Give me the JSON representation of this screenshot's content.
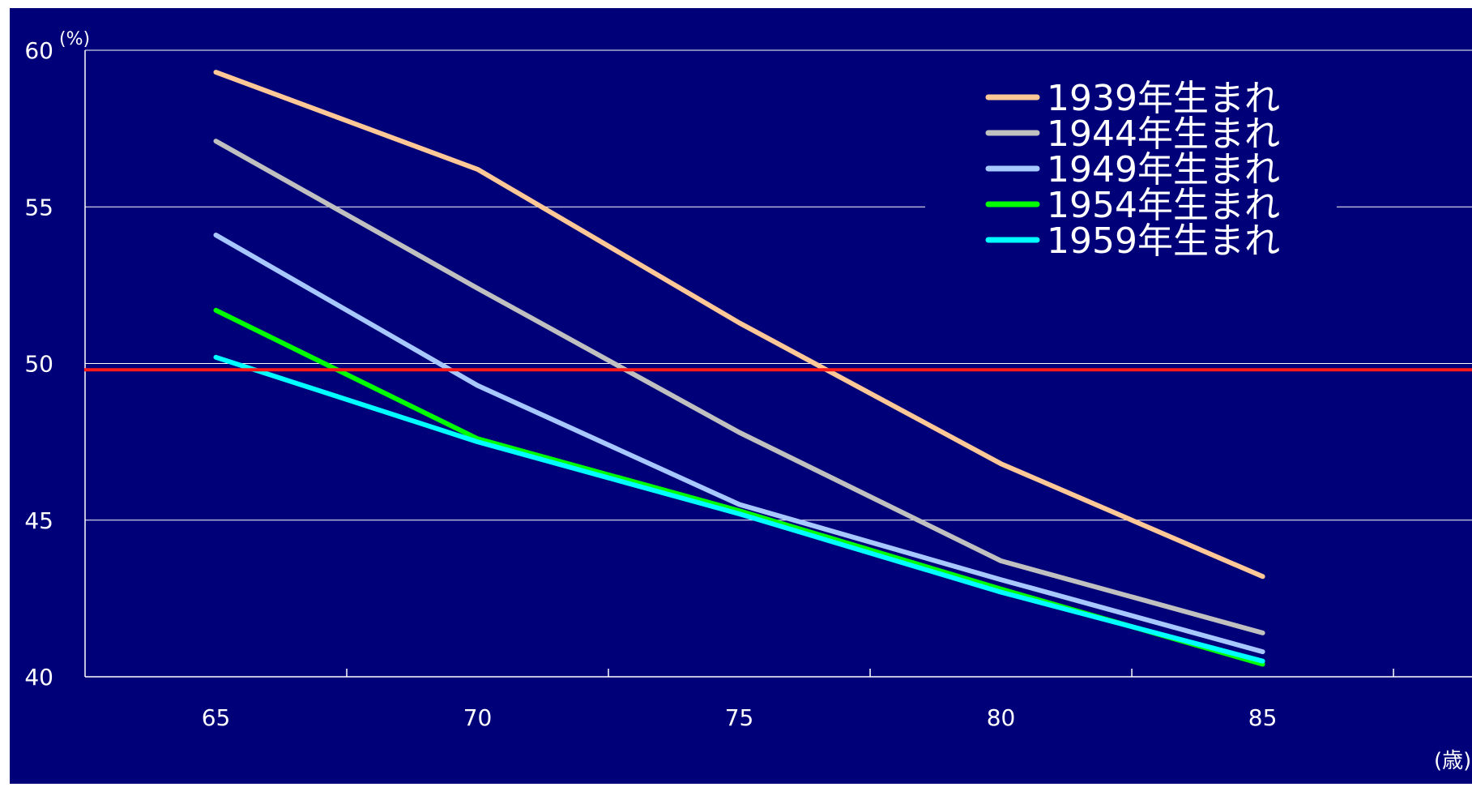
{
  "chart_data": {
    "type": "line",
    "x": [
      65,
      70,
      75,
      80,
      85
    ],
    "x_tick_labels": [
      "65",
      "70",
      "75",
      "80",
      "85"
    ],
    "y_tick_labels": [
      "40",
      "45",
      "50",
      "55",
      "60"
    ],
    "ylim": [
      40,
      60
    ],
    "xlim": [
      62.5,
      89
    ],
    "y_unit": "(%)",
    "x_unit": "(歳)",
    "grid": true,
    "legend_position": "top-right",
    "reference_line": {
      "y": 49.8,
      "color": "#ff1a1a"
    },
    "colors": {
      "background": "#000078",
      "grid": "#ffffff",
      "text": "#ffffff"
    },
    "series": [
      {
        "name": "1939年生まれ",
        "color": "#ffc896",
        "values": [
          59.3,
          56.2,
          51.3,
          46.8,
          43.2
        ]
      },
      {
        "name": "1944年生まれ",
        "color": "#c0c0c0",
        "values": [
          57.1,
          52.4,
          47.8,
          43.7,
          41.4
        ]
      },
      {
        "name": "1949年生まれ",
        "color": "#a6c8ff",
        "values": [
          54.1,
          49.3,
          45.5,
          43.1,
          40.8
        ]
      },
      {
        "name": "1954年生まれ",
        "color": "#00ff00",
        "values": [
          51.7,
          47.6,
          45.3,
          42.8,
          40.4
        ]
      },
      {
        "name": "1959年生まれ",
        "color": "#00ffff",
        "values": [
          50.2,
          47.5,
          45.2,
          42.7,
          40.5
        ]
      }
    ]
  }
}
